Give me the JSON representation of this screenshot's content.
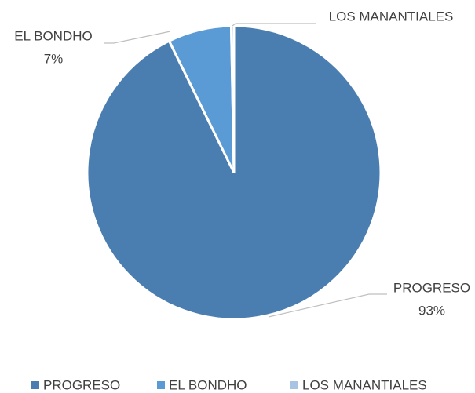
{
  "chart_data": {
    "type": "pie",
    "categories": [
      "PROGRESO",
      "EL BONDHO",
      "LOS MANANTIALES"
    ],
    "values": [
      93,
      7,
      0.3
    ],
    "value_labels": [
      "93%",
      "7%",
      null
    ],
    "colors": [
      "#4a7eb1",
      "#5b9bd5",
      "#a9c4e2"
    ],
    "legend": "bottom"
  }
}
